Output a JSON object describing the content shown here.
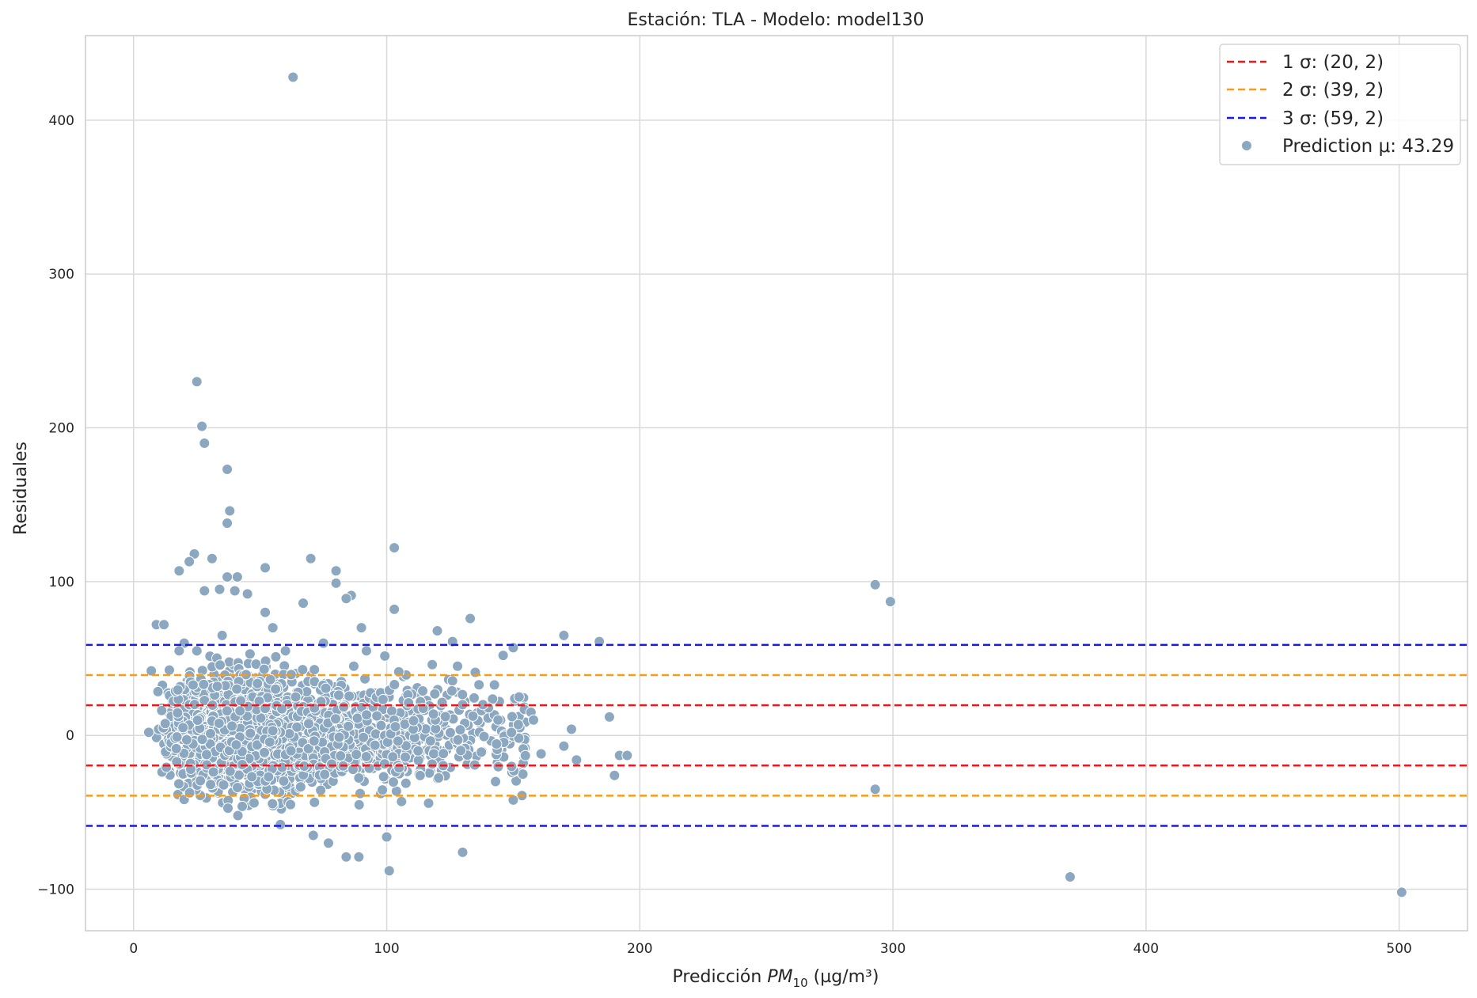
{
  "chart_data": {
    "type": "scatter",
    "title": "Estación: TLA - Modelo: model130",
    "xlabel_prefix": "Predicción ",
    "xlabel_var": "PM",
    "xlabel_sub": "10",
    "xlabel_unit": " (µg/m³)",
    "ylabel": "Residuales",
    "xlim": [
      -19,
      527
    ],
    "ylim": [
      -127,
      455
    ],
    "xticks": [
      0,
      100,
      200,
      300,
      400,
      500
    ],
    "yticks": [
      -100,
      0,
      100,
      200,
      300,
      400
    ],
    "xtick_labels": [
      "0",
      "100",
      "200",
      "300",
      "400",
      "500"
    ],
    "ytick_labels": [
      "−100",
      "0",
      "100",
      "200",
      "300",
      "400"
    ],
    "grid": true,
    "legend_position": "top-right",
    "hlines": [
      {
        "label": "1 σ: (20, 2)",
        "values": [
          19.6,
          -19.6
        ],
        "color": "#e41a1c"
      },
      {
        "label": "2 σ: (39, 2)",
        "values": [
          39.2,
          -39.2
        ],
        "color": "#f39c1f"
      },
      {
        "label": "3 σ: (59, 2)",
        "values": [
          58.8,
          -58.8
        ],
        "color": "#1a1adb"
      }
    ],
    "scatter_series": {
      "label": "Prediction μ: 43.29",
      "color": "#8ba8c0",
      "outliers": [
        [
          63,
          428
        ],
        [
          25,
          230
        ],
        [
          27,
          201
        ],
        [
          28,
          190
        ],
        [
          37,
          173
        ],
        [
          38,
          146
        ],
        [
          37,
          138
        ],
        [
          31,
          115
        ],
        [
          24,
          118
        ],
        [
          22,
          113
        ],
        [
          18,
          107
        ],
        [
          41,
          103
        ],
        [
          37,
          103
        ],
        [
          52,
          109
        ],
        [
          70,
          115
        ],
        [
          103,
          122
        ],
        [
          80,
          107
        ],
        [
          80,
          99
        ],
        [
          86,
          91
        ],
        [
          84,
          89
        ],
        [
          67,
          86
        ],
        [
          45,
          92
        ],
        [
          103,
          82
        ],
        [
          293,
          98
        ],
        [
          299,
          87
        ],
        [
          9,
          72
        ],
        [
          12,
          72
        ],
        [
          20,
          60
        ],
        [
          90,
          70
        ],
        [
          133,
          76
        ],
        [
          170,
          65
        ],
        [
          184,
          61
        ],
        [
          128,
          45
        ],
        [
          120,
          68
        ],
        [
          126,
          61
        ],
        [
          150,
          57
        ],
        [
          293,
          -35
        ],
        [
          370,
          -92
        ],
        [
          501,
          -102
        ],
        [
          101,
          -88
        ],
        [
          100,
          -66
        ],
        [
          130,
          -76
        ],
        [
          71,
          -65
        ],
        [
          77,
          -70
        ],
        [
          84,
          -79
        ],
        [
          89,
          -79
        ],
        [
          58,
          -58
        ],
        [
          62,
          -45
        ],
        [
          143,
          -30
        ],
        [
          150,
          -42
        ],
        [
          192,
          -13
        ],
        [
          195,
          -13
        ],
        [
          190,
          -26
        ],
        [
          175,
          -16
        ],
        [
          161,
          -12
        ],
        [
          170,
          -7
        ],
        [
          188,
          12
        ],
        [
          173,
          4
        ],
        [
          7,
          42
        ],
        [
          6,
          2
        ],
        [
          157,
          15
        ],
        [
          158,
          10
        ],
        [
          144,
          10
        ],
        [
          135,
          41
        ],
        [
          146,
          52
        ],
        [
          130,
          20
        ],
        [
          138,
          20
        ],
        [
          152,
          7
        ],
        [
          92,
          55
        ],
        [
          87,
          45
        ],
        [
          119,
          27
        ],
        [
          118,
          46
        ],
        [
          34,
          95
        ],
        [
          40,
          94
        ],
        [
          28,
          94
        ],
        [
          52,
          80
        ],
        [
          55,
          70
        ],
        [
          35,
          65
        ],
        [
          60,
          55
        ],
        [
          75,
          60
        ],
        [
          46,
          53
        ],
        [
          18,
          55
        ],
        [
          25,
          55
        ]
      ]
    }
  }
}
